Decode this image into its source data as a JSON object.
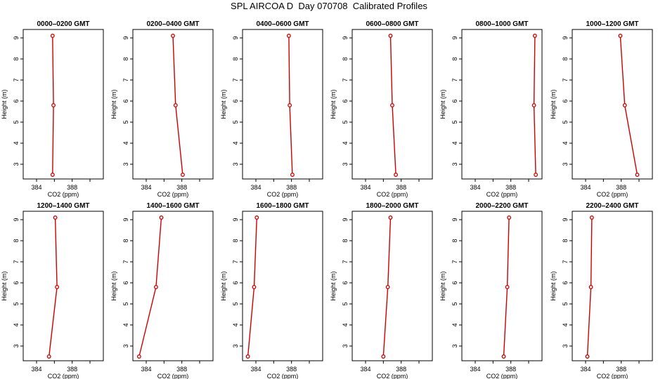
{
  "title": "SPL AIRCOA D  Day 070708  Calibrated Profiles",
  "chart_data": {
    "type": "line",
    "xlabel": "CO2 (ppm)",
    "ylabel": "Height (m)",
    "xlim": [
      382.5,
      391.5
    ],
    "ylim": [
      2.3,
      9.4
    ],
    "xticks": [
      384,
      388
    ],
    "yticks": [
      3,
      4,
      5,
      6,
      7,
      8,
      9
    ],
    "heights": [
      9.1,
      5.8,
      2.5
    ],
    "series_color": "#cc0000",
    "panels": [
      {
        "title": "0000–0200 GMT",
        "co2": [
          385.8,
          385.9,
          385.8
        ]
      },
      {
        "title": "0200–0400 GMT",
        "co2": [
          387.0,
          387.3,
          388.1
        ]
      },
      {
        "title": "0400–0600 GMT",
        "co2": [
          387.7,
          387.8,
          388.1
        ]
      },
      {
        "title": "0600–0800 GMT",
        "co2": [
          386.8,
          387.0,
          387.4
        ]
      },
      {
        "title": "0800–1000 GMT",
        "co2": [
          390.7,
          390.6,
          390.8
        ]
      },
      {
        "title": "1000–1200 GMT",
        "co2": [
          387.9,
          388.4,
          389.8
        ]
      },
      {
        "title": "1200–1400 GMT",
        "co2": [
          386.1,
          386.3,
          385.4
        ]
      },
      {
        "title": "1400–1600 GMT",
        "co2": [
          385.7,
          385.1,
          383.2
        ]
      },
      {
        "title": "1600–1800 GMT",
        "co2": [
          384.1,
          383.8,
          383.1
        ]
      },
      {
        "title": "1800–2000 GMT",
        "co2": [
          386.8,
          386.5,
          386.0
        ]
      },
      {
        "title": "2000–2200 GMT",
        "co2": [
          387.8,
          387.6,
          387.2
        ]
      },
      {
        "title": "2200–2400 GMT",
        "co2": [
          384.7,
          384.6,
          384.2
        ]
      }
    ]
  }
}
